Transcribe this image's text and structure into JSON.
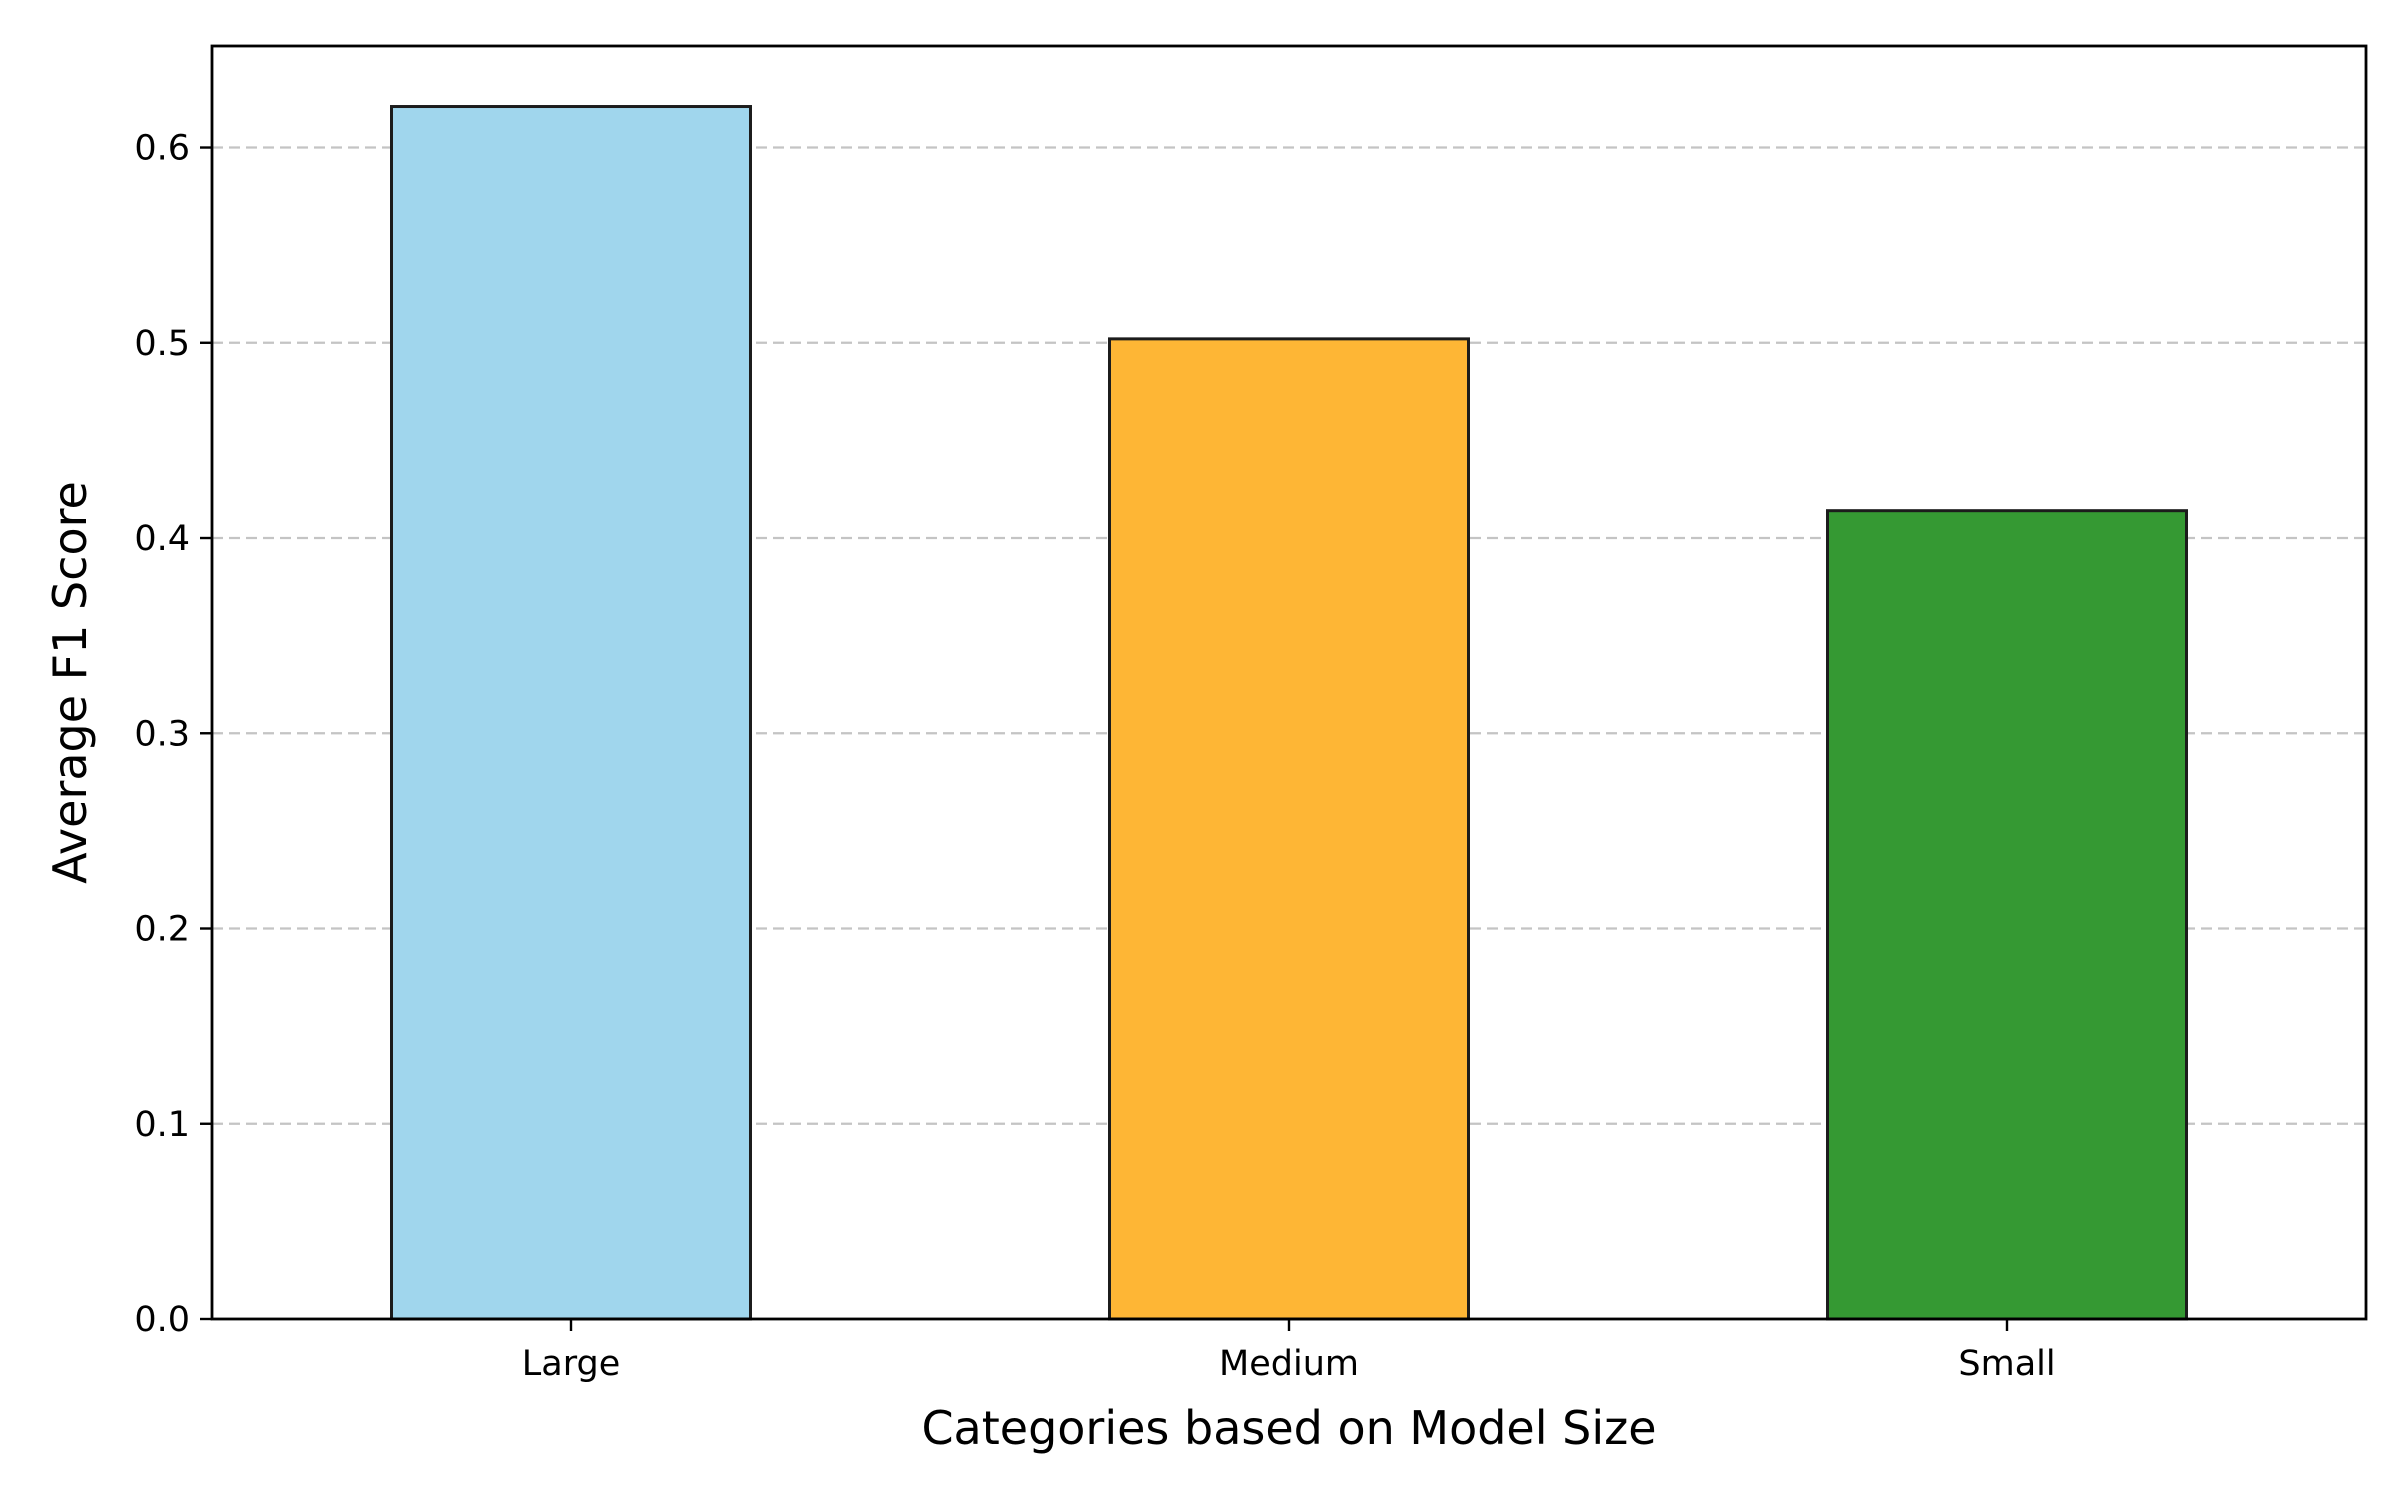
{
  "chart_data": {
    "type": "bar",
    "categories": [
      "Large",
      "Medium",
      "Small"
    ],
    "values": [
      0.621,
      0.502,
      0.414
    ],
    "colors": [
      "#a0d6ed",
      "#feb635",
      "#359933"
    ],
    "edge_color": "#1c1c1c",
    "title": "",
    "xlabel": "Categories based on Model Size",
    "ylabel": "Average F1 Score",
    "ylim": [
      0,
      0.652
    ],
    "yticks": [
      0.0,
      0.1,
      0.2,
      0.3,
      0.4,
      0.5,
      0.6
    ],
    "ytick_labels": [
      "0.0",
      "0.1",
      "0.2",
      "0.3",
      "0.4",
      "0.5",
      "0.6"
    ],
    "grid": {
      "axis": "y",
      "style": "dashed",
      "color": "#c4c4c4"
    },
    "legend": "none"
  }
}
